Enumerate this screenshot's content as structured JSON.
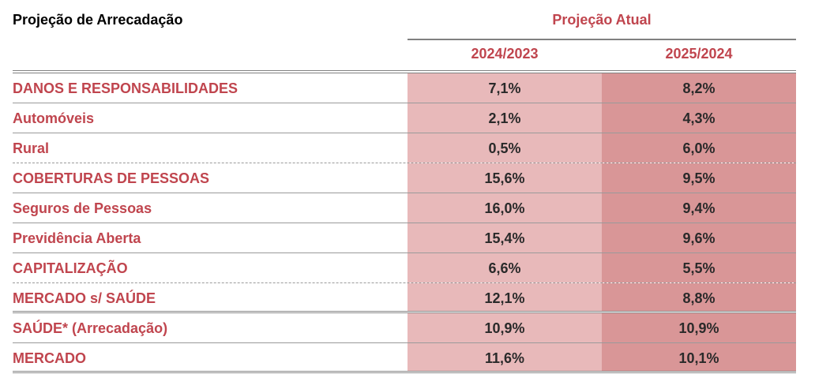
{
  "chart_data": {
    "type": "table",
    "title": "Projeção de Arrecadação",
    "group_header": "Projeção Atual",
    "columns": [
      "2024/2023",
      "2025/2024"
    ],
    "rows": [
      {
        "label": "DANOS E RESPONSABILIDADES",
        "values": [
          "7,1%",
          "8,2%"
        ]
      },
      {
        "label": "Automóveis",
        "values": [
          "2,1%",
          "4,3%"
        ]
      },
      {
        "label": "Rural",
        "values": [
          "0,5%",
          "6,0%"
        ]
      },
      {
        "label": "COBERTURAS DE PESSOAS",
        "values": [
          "15,6%",
          "9,5%"
        ]
      },
      {
        "label": "Seguros de Pessoas",
        "values": [
          "16,0%",
          "9,4%"
        ]
      },
      {
        "label": "Previdência Aberta",
        "values": [
          "15,4%",
          "9,6%"
        ]
      },
      {
        "label": "CAPITALIZAÇÃO",
        "values": [
          "6,6%",
          "5,5%"
        ]
      },
      {
        "label": "MERCADO s/ SAÚDE",
        "values": [
          "12,1%",
          "8,8%"
        ]
      },
      {
        "label": "SAÚDE* (Arrecadação)",
        "values": [
          "10,9%",
          "10,9%"
        ]
      },
      {
        "label": "MERCADO",
        "values": [
          "11,6%",
          "10,1%"
        ]
      }
    ],
    "colors": {
      "label_text": "#c0454e",
      "col1_fill": "#e8b9ba",
      "col2_fill": "#d99697"
    }
  }
}
